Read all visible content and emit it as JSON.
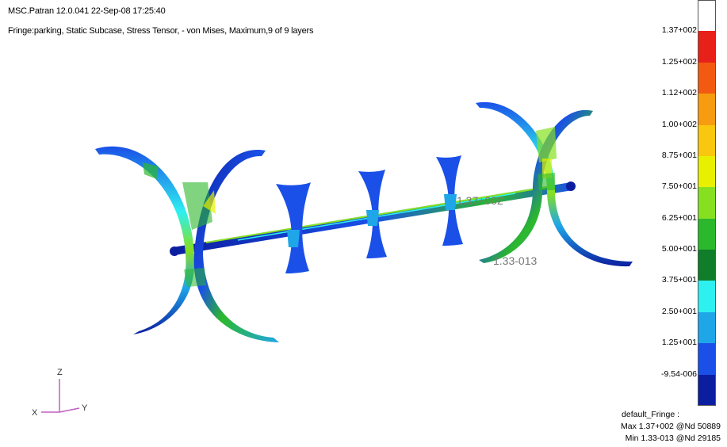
{
  "header": {
    "title": "MSC.Patran 12.0.041 22-Sep-08 17:25:40",
    "subtitle": "Fringe:parking, Static Subcase, Stress Tensor, - von Mises, Maximum,9 of 9 layers"
  },
  "viewport": {
    "max_marker": "1.37+002",
    "min_marker": "1.33-013"
  },
  "legend": {
    "labels": [
      "1.37+002",
      "1.25+002",
      "1.12+002",
      "1.00+002",
      "8.75+001",
      "7.50+001",
      "6.25+001",
      "5.00+001",
      "3.75+001",
      "2.50+001",
      "1.25+001",
      "-9.54-006"
    ],
    "colors": [
      "#ffffff",
      "#e8201a",
      "#f25a12",
      "#f79b10",
      "#f9c80e",
      "#e8f000",
      "#86e020",
      "#2cb82c",
      "#0f7d2a",
      "#2ef0f0",
      "#1fa6e8",
      "#1a50e8",
      "#0c1ea0"
    ]
  },
  "summary": {
    "title": "default_Fringe :",
    "max": "Max 1.37+002 @Nd 50889",
    "min": "Min 1.33-013 @Nd 29185"
  },
  "axes": {
    "z": "Z",
    "x": "X",
    "y": "Y"
  }
}
